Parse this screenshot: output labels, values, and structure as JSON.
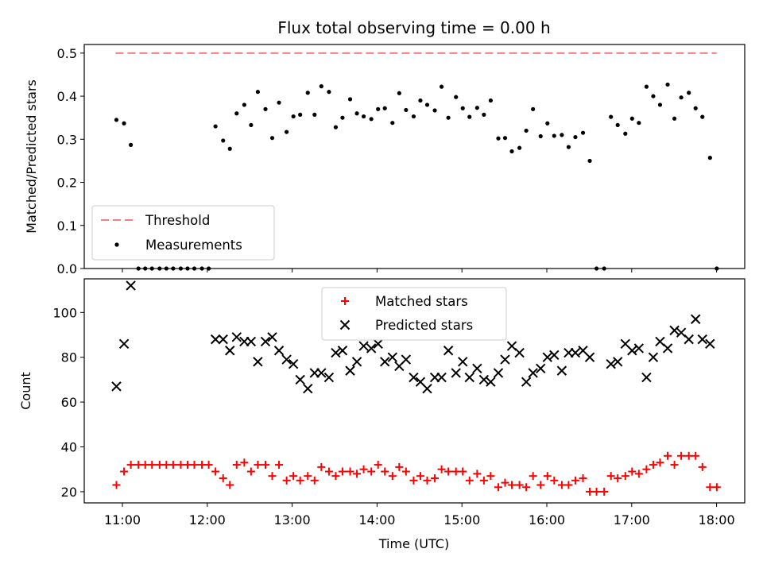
{
  "chart_data": [
    {
      "type": "scatter",
      "title": "Flux total observing time = 0.00 h",
      "xlabel": "",
      "ylabel": "Matched/Predicted stars",
      "ylim": [
        0,
        0.52
      ],
      "yticks": [
        "0.0",
        "0.1",
        "0.2",
        "0.3",
        "0.4",
        "0.5"
      ],
      "legend_position": "lower-left",
      "colors": {
        "threshold": "#f08080",
        "measurements": "#000000"
      },
      "threshold": {
        "name": "Threshold",
        "value": 0.5,
        "x_start": 10.9,
        "x_end": 18.0
      },
      "series": [
        {
          "name": "Measurements",
          "x": [
            10.91,
            11.0,
            11.08,
            11.17,
            11.25,
            11.33,
            11.42,
            11.5,
            11.58,
            11.67,
            11.75,
            11.83,
            11.92,
            12.0,
            12.08,
            12.17,
            12.25,
            12.33,
            12.42,
            12.5,
            12.58,
            12.67,
            12.75,
            12.83,
            12.92,
            13.0,
            13.08,
            13.17,
            13.25,
            13.33,
            13.42,
            13.5,
            13.58,
            13.67,
            13.75,
            13.83,
            13.92,
            14.0,
            14.08,
            14.17,
            14.25,
            14.33,
            14.42,
            14.5,
            14.58,
            14.67,
            14.75,
            14.83,
            14.92,
            15.0,
            15.08,
            15.17,
            15.25,
            15.33,
            15.42,
            15.5,
            15.58,
            15.67,
            15.75,
            15.83,
            15.92,
            16.0,
            16.08,
            16.17,
            16.25,
            16.33,
            16.42,
            16.5,
            16.58,
            16.67,
            16.75,
            16.83,
            16.92,
            17.0,
            17.08,
            17.17,
            17.25,
            17.33,
            17.42,
            17.5,
            17.58,
            17.67,
            17.75,
            17.83,
            17.92,
            18.0
          ],
          "y": [
            0.345,
            0.337,
            0.287,
            0.0,
            0.0,
            0.0,
            0.0,
            0.0,
            0.0,
            0.0,
            0.0,
            0.0,
            0.0,
            0.0,
            0.33,
            0.297,
            0.278,
            0.36,
            0.38,
            0.333,
            0.41,
            0.37,
            0.303,
            0.385,
            0.317,
            0.353,
            0.357,
            0.408,
            0.357,
            0.423,
            0.41,
            0.328,
            0.35,
            0.393,
            0.36,
            0.353,
            0.347,
            0.37,
            0.372,
            0.338,
            0.407,
            0.368,
            0.353,
            0.39,
            0.38,
            0.367,
            0.422,
            0.35,
            0.398,
            0.372,
            0.352,
            0.373,
            0.357,
            0.39,
            0.302,
            0.303,
            0.272,
            0.28,
            0.32,
            0.37,
            0.307,
            0.337,
            0.308,
            0.31,
            0.282,
            0.305,
            0.315,
            0.25,
            0.0,
            0.0,
            0.352,
            0.333,
            0.313,
            0.348,
            0.338,
            0.422,
            0.4,
            0.38,
            0.427,
            0.348,
            0.397,
            0.408,
            0.372,
            0.352,
            0.257,
            0.0
          ]
        }
      ]
    },
    {
      "type": "scatter",
      "title": "",
      "xlabel": "Time (UTC)",
      "ylabel": "Count",
      "ylim": [
        15,
        115
      ],
      "yticks": [
        "20",
        "40",
        "60",
        "80",
        "100"
      ],
      "xlim": [
        10.53,
        18.33
      ],
      "xticks": [
        "11:00",
        "12:00",
        "13:00",
        "14:00",
        "15:00",
        "16:00",
        "17:00",
        "18:00"
      ],
      "legend_position": "top-center",
      "colors": {
        "matched": "#ff0000",
        "predicted": "#000000"
      },
      "series": [
        {
          "name": "Matched stars",
          "marker": "+",
          "x": [
            10.91,
            11.0,
            11.08,
            11.17,
            11.25,
            11.33,
            11.42,
            11.5,
            11.58,
            11.67,
            11.75,
            11.83,
            11.92,
            12.0,
            12.08,
            12.17,
            12.25,
            12.33,
            12.42,
            12.5,
            12.58,
            12.67,
            12.75,
            12.83,
            12.92,
            13.0,
            13.08,
            13.17,
            13.25,
            13.33,
            13.42,
            13.5,
            13.58,
            13.67,
            13.75,
            13.83,
            13.92,
            14.0,
            14.08,
            14.17,
            14.25,
            14.33,
            14.42,
            14.5,
            14.58,
            14.67,
            14.75,
            14.83,
            14.92,
            15.0,
            15.08,
            15.17,
            15.25,
            15.33,
            15.42,
            15.5,
            15.58,
            15.67,
            15.75,
            15.83,
            15.92,
            16.0,
            16.08,
            16.17,
            16.25,
            16.33,
            16.42,
            16.5,
            16.58,
            16.67,
            16.75,
            16.83,
            16.92,
            17.0,
            17.08,
            17.17,
            17.25,
            17.33,
            17.42,
            17.5,
            17.58,
            17.67,
            17.75,
            17.83,
            17.92,
            18.0
          ],
          "y": [
            23,
            29,
            32,
            32,
            32,
            32,
            32,
            32,
            32,
            32,
            32,
            32,
            32,
            32,
            29,
            26,
            23,
            32,
            33,
            29,
            32,
            32,
            27,
            32,
            25,
            27,
            25,
            27,
            25,
            31,
            29,
            27,
            29,
            29,
            28,
            30,
            29,
            32,
            29,
            27,
            31,
            29,
            25,
            27,
            25,
            26,
            30,
            29,
            29,
            29,
            25,
            28,
            25,
            27,
            22,
            24,
            23,
            23,
            22,
            27,
            23,
            27,
            25,
            23,
            23,
            25,
            26,
            20,
            20,
            20,
            27,
            26,
            27,
            29,
            28,
            30,
            32,
            33,
            36,
            32,
            36,
            36,
            36,
            31,
            22,
            22
          ]
        },
        {
          "name": "Predicted stars",
          "marker": "x",
          "x": [
            10.91,
            11.0,
            11.08,
            12.08,
            12.17,
            12.25,
            12.33,
            12.42,
            12.5,
            12.58,
            12.67,
            12.75,
            12.83,
            12.92,
            13.0,
            13.08,
            13.17,
            13.25,
            13.33,
            13.42,
            13.5,
            13.58,
            13.67,
            13.75,
            13.83,
            13.92,
            14.0,
            14.08,
            14.17,
            14.25,
            14.33,
            14.42,
            14.5,
            14.58,
            14.67,
            14.75,
            14.83,
            14.92,
            15.0,
            15.08,
            15.17,
            15.25,
            15.33,
            15.42,
            15.5,
            15.58,
            15.67,
            15.75,
            15.83,
            15.92,
            16.0,
            16.08,
            16.17,
            16.25,
            16.33,
            16.42,
            16.5,
            16.75,
            16.83,
            16.92,
            17.0,
            17.08,
            17.17,
            17.25,
            17.33,
            17.42,
            17.5,
            17.58,
            17.67,
            17.75,
            17.83,
            17.92
          ],
          "y": [
            67,
            86,
            112,
            88,
            88,
            83,
            89,
            87,
            87,
            78,
            87,
            89,
            83,
            79,
            77,
            70,
            66,
            73,
            73,
            71,
            82,
            83,
            74,
            78,
            85,
            84,
            86,
            78,
            80,
            76,
            79,
            71,
            69,
            66,
            71,
            71,
            83,
            73,
            78,
            71,
            75,
            70,
            69,
            73,
            79,
            85,
            82,
            69,
            73,
            75,
            80,
            81,
            74,
            82,
            82,
            83,
            80,
            77,
            78,
            86,
            83,
            84,
            71,
            80,
            87,
            84,
            92,
            91,
            88,
            97,
            88,
            86
          ]
        }
      ]
    }
  ]
}
